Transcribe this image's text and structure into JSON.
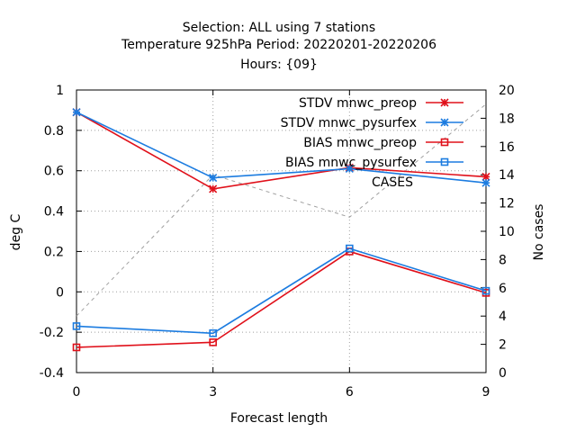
{
  "chart_data": {
    "type": "line",
    "title_lines": [
      "Selection: ALL using     7 stations",
      "Temperature 925hPa   Period: 20220201-20220206",
      "Hours: {09}"
    ],
    "xlabel": "Forecast length",
    "ylabel": "deg C",
    "y2label": "No cases",
    "x": [
      0,
      3,
      6,
      9
    ],
    "xlim": [
      0,
      9
    ],
    "ylim": [
      -0.4,
      1
    ],
    "y2lim": [
      0,
      20
    ],
    "x_ticks": [
      "0",
      "3",
      "6",
      "9"
    ],
    "y_ticks": [
      "-0.4",
      "-0.2",
      "0",
      "0.2",
      "0.4",
      "0.6",
      "0.8",
      "1"
    ],
    "y2_ticks": [
      "0",
      "2",
      "4",
      "6",
      "8",
      "10",
      "12",
      "14",
      "16",
      "18",
      "20"
    ],
    "grid": true,
    "legend_position": "top-right",
    "series": [
      {
        "name": "STDV mnwc_preop",
        "axis": "y",
        "color": "#e0101a",
        "marker": "star",
        "values": [
          0.89,
          0.51,
          0.615,
          0.57
        ]
      },
      {
        "name": "STDV mnwc_pysurfex",
        "axis": "y",
        "color": "#1c7ce0",
        "marker": "star",
        "values": [
          0.89,
          0.565,
          0.61,
          0.54
        ]
      },
      {
        "name": "BIAS mnwc_preop",
        "axis": "y",
        "color": "#e0101a",
        "marker": "square",
        "values": [
          -0.275,
          -0.25,
          0.2,
          -0.005
        ]
      },
      {
        "name": "BIAS mnwc_pysurfex",
        "axis": "y",
        "color": "#1c7ce0",
        "marker": "square",
        "values": [
          -0.17,
          -0.205,
          0.215,
          0.005
        ]
      },
      {
        "name": "CASES",
        "axis": "y2",
        "color": "#a0a0a0",
        "marker": "none",
        "dashed": true,
        "values": [
          4,
          14,
          11,
          19
        ]
      }
    ]
  }
}
